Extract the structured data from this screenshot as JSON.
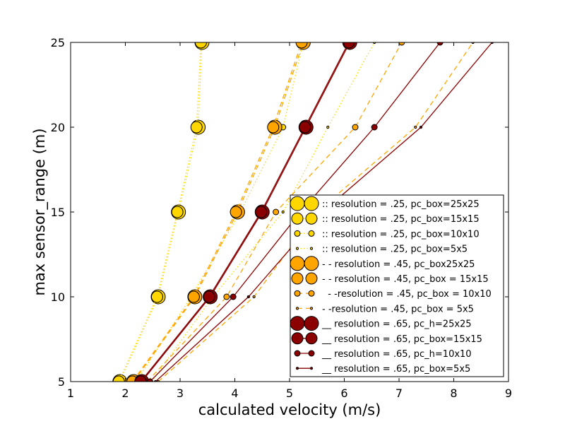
{
  "chart_data": {
    "type": "line",
    "title": "",
    "xlabel": "calculated velocity (m/s)",
    "ylabel": "max sensor_range (m)",
    "xlim": [
      1,
      9
    ],
    "ylim": [
      5,
      25
    ],
    "xticks": [
      "1",
      "2",
      "3",
      "4",
      "5",
      "6",
      "7",
      "8",
      "9"
    ],
    "yticks": [
      "5",
      "10",
      "15",
      "20",
      "25"
    ],
    "grid": false,
    "legend_position": "lower-right",
    "y": [
      5,
      10,
      15,
      20,
      25
    ],
    "series": [
      {
        "name": ":: resolution = .25, pc_box=25x25",
        "x": [
          1.9,
          2.6,
          2.97,
          3.33,
          3.4
        ],
        "color": "#FFD700",
        "line": "dotted",
        "marker_size": "xlarge"
      },
      {
        "name": ":: resolution = .25, pc_box=15x15",
        "x": [
          1.88,
          2.58,
          2.95,
          3.3,
          3.38
        ],
        "color": "#FFD700",
        "line": "dotted",
        "marker_size": "large"
      },
      {
        "name": ":: resolution = .25, pc_box=10x10",
        "x": [
          2.2,
          3.2,
          4.1,
          4.88,
          5.25
        ],
        "color": "#FFD700",
        "line": "dotted",
        "marker_size": "small"
      },
      {
        "name": ":: resolution = .25, pc_box=5x5",
        "x": [
          2.48,
          3.6,
          4.88,
          5.7,
          6.55
        ],
        "color": "#FFD700",
        "line": "dotted",
        "marker_size": "tiny"
      },
      {
        "name": "- - resolution = .45, pc_box25x25",
        "x": [
          2.15,
          3.27,
          4.05,
          4.73,
          5.25
        ],
        "color": "#FFA500",
        "line": "dashed",
        "marker_size": "xlarge"
      },
      {
        "name": "- - resolution = .45, pc_box = 15x15",
        "x": [
          2.13,
          3.25,
          4.02,
          4.7,
          5.22
        ],
        "color": "#FFA500",
        "line": "dashed",
        "marker_size": "large"
      },
      {
        "name": "  - -resolution = .45, pc_box = 10x10",
        "x": [
          2.4,
          3.85,
          4.75,
          6.2,
          7.05
        ],
        "color": "#FFA500",
        "line": "dashed",
        "marker_size": "small"
      },
      {
        "name": "- -resolution = .45, pc_box = 5x5",
        "x": [
          2.6,
          4.35,
          5.5,
          7.3,
          8.35
        ],
        "color": "#FFA500",
        "line": "dashed",
        "marker_size": "tiny"
      },
      {
        "name": "__ resolution = .65, pc_h=25x25",
        "x": [
          2.3,
          3.55,
          4.5,
          5.3,
          6.1
        ],
        "color": "#8B0000",
        "line": "solid",
        "marker_size": "xlarge"
      },
      {
        "name": "__ resolution = .65, pc_box=15x15",
        "x": [
          2.28,
          3.53,
          4.48,
          5.28,
          6.08
        ],
        "color": "#8B0000",
        "line": "solid",
        "marker_size": "large"
      },
      {
        "name": "__ resolution = .65, pc_h=10x10",
        "x": [
          2.45,
          3.97,
          5.2,
          6.55,
          7.75
        ],
        "color": "#8B0000",
        "line": "solid",
        "marker_size": "small"
      },
      {
        "name": "__ resolution = .65, pc_box=5x5",
        "x": [
          2.55,
          4.25,
          5.6,
          7.4,
          8.7
        ],
        "color": "#8B0000",
        "line": "solid",
        "marker_size": "tiny"
      }
    ]
  }
}
